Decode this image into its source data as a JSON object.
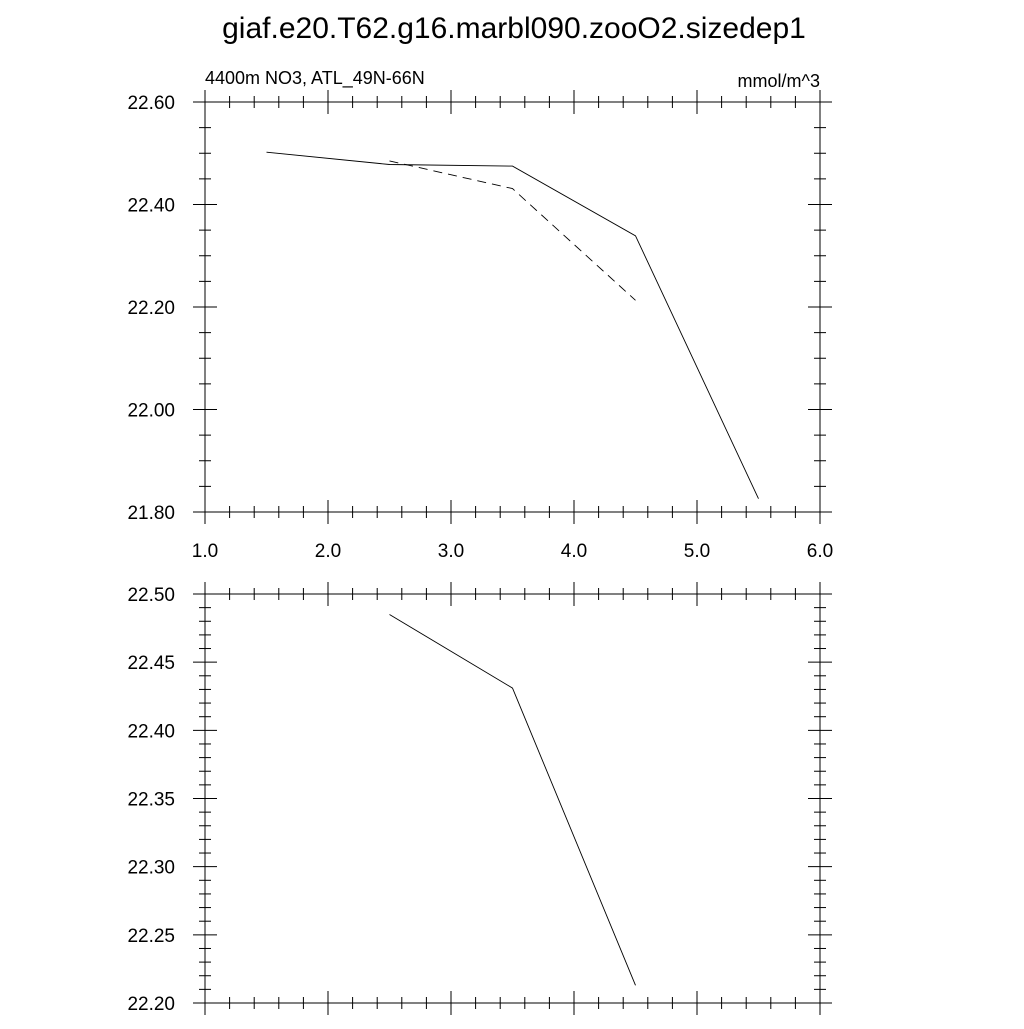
{
  "title": "giaf.e20.T62.g16.marbl090.zooO2.sizedep1",
  "chart_data": [
    {
      "type": "line",
      "left_label": "4400m NO3, ATL_49N-66N",
      "right_label": "mmol/m^3",
      "xlim": [
        1.0,
        6.0
      ],
      "ylim": [
        21.8,
        22.6
      ],
      "xticks": [
        1.0,
        2.0,
        3.0,
        4.0,
        5.0,
        6.0
      ],
      "xtick_labels": [
        "1.0",
        "2.0",
        "3.0",
        "4.0",
        "5.0",
        "6.0"
      ],
      "yticks": [
        21.8,
        22.0,
        22.2,
        22.4,
        22.6
      ],
      "ytick_labels": [
        "21.80",
        "22.00",
        "22.20",
        "22.40",
        "22.60"
      ],
      "series": [
        {
          "style": "solid",
          "x": [
            1.5,
            2.5,
            3.5,
            4.5,
            5.5
          ],
          "y": [
            22.502,
            22.478,
            22.475,
            22.339,
            21.826
          ]
        },
        {
          "style": "dashed",
          "x": [
            2.5,
            3.5,
            4.5
          ],
          "y": [
            22.485,
            22.431,
            22.213
          ]
        }
      ]
    },
    {
      "type": "line",
      "xlim": [
        1.0,
        6.0
      ],
      "ylim": [
        22.2,
        22.5
      ],
      "xticks": [
        1.0,
        2.0,
        3.0,
        4.0,
        5.0,
        6.0
      ],
      "yticks": [
        22.2,
        22.25,
        22.3,
        22.35,
        22.4,
        22.45,
        22.5
      ],
      "ytick_labels": [
        "22.20",
        "22.25",
        "22.30",
        "22.35",
        "22.40",
        "22.45",
        "22.50"
      ],
      "series": [
        {
          "style": "solid",
          "x": [
            2.5,
            3.5,
            4.5
          ],
          "y": [
            22.485,
            22.431,
            22.213
          ]
        }
      ]
    }
  ]
}
